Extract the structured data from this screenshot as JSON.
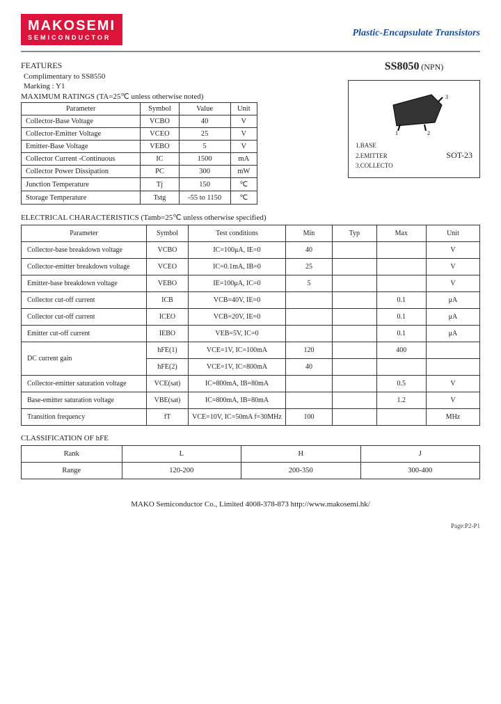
{
  "logo": {
    "main": "MAKOSEMI",
    "sub": "SEMICONDUCTOR"
  },
  "doc_title": "Plastic-Encapsulate Transistors",
  "part": {
    "number": "SS8050",
    "type": "(NPN)"
  },
  "features": {
    "heading": "FEATURES",
    "complimentary": "Complimentary to SS8550",
    "marking": "Marking :    Y1"
  },
  "package": {
    "pins": {
      "p1": "1.BASE",
      "p2": "2.EMITTER",
      "p3": "3.COLLECTO"
    },
    "name": "SOT-23"
  },
  "ratings": {
    "heading": "MAXIMUM RATINGS (TA=25℃ unless otherwise noted)",
    "headers": [
      "Parameter",
      "Symbol",
      "Value",
      "Unit"
    ],
    "rows": [
      [
        "Collector-Base Voltage",
        "VCBO",
        "40",
        "V"
      ],
      [
        "Collector-Emitter Voltage",
        "VCEO",
        "25",
        "V"
      ],
      [
        "Emitter-Base Voltage",
        "VEBO",
        "5",
        "V"
      ],
      [
        "Collector Current -Continuous",
        "IC",
        "1500",
        "mA"
      ],
      [
        "Collector Power Dissipation",
        "PC",
        "300",
        "mW"
      ],
      [
        "Junction Temperature",
        "Tj",
        "150",
        "℃"
      ],
      [
        "Storage Temperature",
        "Tstg",
        "-55 to 1150",
        "℃"
      ]
    ]
  },
  "electrical": {
    "heading": "ELECTRICAL CHARACTERISTICS (Tamb=25℃ unless otherwise specified)",
    "headers": [
      "Parameter",
      "Symbol",
      "Test     conditions",
      "Min",
      "Typ",
      "Max",
      "Unit"
    ],
    "rows": [
      [
        "Collector-base breakdown voltage",
        "VCBO",
        "IC=100μA, IE=0",
        "40",
        "",
        "",
        "V"
      ],
      [
        "Collector-emitter breakdown voltage",
        "VCEO",
        "IC=0.1mA, IB=0",
        "25",
        "",
        "",
        "V"
      ],
      [
        "Emitter-base breakdown voltage",
        "VEBO",
        "IE=100μA, IC=0",
        "5",
        "",
        "",
        "V"
      ],
      [
        "Collector cut-off current",
        "ICB",
        "VCB=40V, IE=0",
        "",
        "",
        "0.1",
        "μA"
      ],
      [
        "Collector cut-off current",
        "ICEO",
        "VCB=20V, IE=0",
        "",
        "",
        "0.1",
        "μA"
      ],
      [
        "Emitter cut-off current",
        "IEBO",
        "VEB=5V, IC=0",
        "",
        "",
        "0.1",
        "μA"
      ]
    ],
    "dc_gain": {
      "param": "DC current gain",
      "r1": [
        "hFE(1)",
        "VCE=1V, IC=100mA",
        "120",
        "",
        "400",
        ""
      ],
      "r2": [
        "hFE(2)",
        "VCE=1V, IC=800mA",
        "40",
        "",
        "",
        ""
      ]
    },
    "rows2": [
      [
        "Collector-emitter saturation voltage",
        "VCE(sat)",
        "IC=800mA, IB=80mA",
        "",
        "",
        "0.5",
        "V"
      ],
      [
        "Base-emitter saturation voltage",
        "VBE(sat)",
        "IC=800mA, IB=80mA",
        "",
        "",
        "1.2",
        "V"
      ],
      [
        "Transition frequency",
        "fT",
        "VCE=10V, IC=50mA f=30MHz",
        "100",
        "",
        "",
        "MHz"
      ]
    ]
  },
  "classification": {
    "heading": "CLASSIFICATION OF   hFE",
    "headers": [
      "Rank",
      "L",
      "H",
      "J"
    ],
    "row": [
      "Range",
      "120-200",
      "200-350",
      "300-400"
    ]
  },
  "footer": "MAKO Semiconductor Co., Limited    4008-378-873   http://www.makosemi.hk/",
  "page_num": "Page:P2-P1"
}
